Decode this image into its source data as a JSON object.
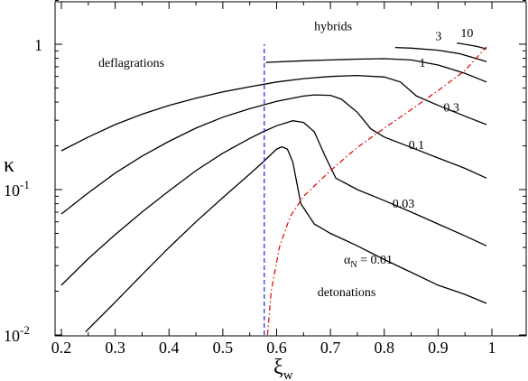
{
  "chart_data": {
    "type": "line",
    "xlabel": {
      "main": "ξ",
      "sub": "w"
    },
    "ylabel": "κ",
    "xlim": [
      0.2,
      1.0
    ],
    "ylim": [
      0.01,
      2.0
    ],
    "yscale": "log",
    "grid": false,
    "x_ticks": [
      "0.2",
      "0.3",
      "0.4",
      "0.5",
      "0.6",
      "0.7",
      "0.8",
      "0.9",
      "1"
    ],
    "y_ticks": [
      {
        "value": 1,
        "base": "1",
        "exp": ""
      },
      {
        "value": 0.1,
        "base": "10",
        "exp": "-1"
      },
      {
        "value": 0.01,
        "base": "10",
        "exp": "-2"
      }
    ],
    "region_labels": [
      {
        "name": "deflagrations",
        "text": "deflagrations",
        "x": 0.33,
        "y": 0.7
      },
      {
        "name": "hybrids",
        "text": "hybrids",
        "x": 0.705,
        "y": 1.25
      },
      {
        "name": "detonations",
        "text": "detonations",
        "x": 0.73,
        "y": 0.0185
      }
    ],
    "series": [
      {
        "name": "0.01",
        "label_text": "",
        "label_at": [
          0.0,
          0.0
        ],
        "points": [
          [
            0.245,
            0.0105
          ],
          [
            0.3,
            0.0168
          ],
          [
            0.35,
            0.026
          ],
          [
            0.4,
            0.04
          ],
          [
            0.45,
            0.06
          ],
          [
            0.5,
            0.088
          ],
          [
            0.55,
            0.128
          ],
          [
            0.575,
            0.155
          ],
          [
            0.6,
            0.19
          ],
          [
            0.61,
            0.197
          ],
          [
            0.62,
            0.19
          ],
          [
            0.63,
            0.155
          ],
          [
            0.645,
            0.08
          ],
          [
            0.67,
            0.058
          ],
          [
            0.7,
            0.05
          ],
          [
            0.75,
            0.041
          ],
          [
            0.8,
            0.033
          ],
          [
            0.85,
            0.027
          ],
          [
            0.9,
            0.022
          ],
          [
            0.95,
            0.019
          ],
          [
            0.99,
            0.0165
          ]
        ]
      },
      {
        "name": "0.03",
        "label_text": "0.03",
        "label_at": [
          0.815,
          0.075
        ],
        "points": [
          [
            0.2,
            0.022
          ],
          [
            0.25,
            0.0335
          ],
          [
            0.3,
            0.049
          ],
          [
            0.35,
            0.07
          ],
          [
            0.4,
            0.098
          ],
          [
            0.45,
            0.135
          ],
          [
            0.5,
            0.178
          ],
          [
            0.55,
            0.225
          ],
          [
            0.575,
            0.25
          ],
          [
            0.6,
            0.275
          ],
          [
            0.63,
            0.298
          ],
          [
            0.65,
            0.29
          ],
          [
            0.67,
            0.25
          ],
          [
            0.69,
            0.17
          ],
          [
            0.71,
            0.12
          ],
          [
            0.75,
            0.1
          ],
          [
            0.8,
            0.084
          ],
          [
            0.85,
            0.07
          ],
          [
            0.9,
            0.058
          ],
          [
            0.95,
            0.048
          ],
          [
            0.99,
            0.041
          ]
        ]
      },
      {
        "name": "0.1",
        "label_text": "0.1",
        "label_at": [
          0.845,
          0.19
        ],
        "points": [
          [
            0.2,
            0.068
          ],
          [
            0.25,
            0.095
          ],
          [
            0.3,
            0.13
          ],
          [
            0.35,
            0.17
          ],
          [
            0.4,
            0.215
          ],
          [
            0.45,
            0.265
          ],
          [
            0.5,
            0.315
          ],
          [
            0.55,
            0.36
          ],
          [
            0.6,
            0.405
          ],
          [
            0.65,
            0.44
          ],
          [
            0.67,
            0.448
          ],
          [
            0.7,
            0.445
          ],
          [
            0.72,
            0.42
          ],
          [
            0.75,
            0.34
          ],
          [
            0.775,
            0.262
          ],
          [
            0.8,
            0.23
          ],
          [
            0.85,
            0.195
          ],
          [
            0.9,
            0.165
          ],
          [
            0.95,
            0.14
          ],
          [
            0.99,
            0.12
          ]
        ]
      },
      {
        "name": "0.3",
        "label_text": "0.3",
        "label_at": [
          0.91,
          0.345
        ],
        "points": [
          [
            0.2,
            0.185
          ],
          [
            0.25,
            0.23
          ],
          [
            0.3,
            0.28
          ],
          [
            0.35,
            0.33
          ],
          [
            0.4,
            0.38
          ],
          [
            0.45,
            0.425
          ],
          [
            0.5,
            0.47
          ],
          [
            0.55,
            0.51
          ],
          [
            0.6,
            0.55
          ],
          [
            0.65,
            0.58
          ],
          [
            0.7,
            0.6
          ],
          [
            0.75,
            0.61
          ],
          [
            0.8,
            0.595
          ],
          [
            0.83,
            0.55
          ],
          [
            0.86,
            0.44
          ],
          [
            0.9,
            0.38
          ],
          [
            0.95,
            0.32
          ],
          [
            0.99,
            0.28
          ]
        ]
      },
      {
        "name": "1",
        "label_text": "1",
        "label_at": [
          0.865,
          0.7
        ],
        "points": [
          [
            0.58,
            0.75
          ],
          [
            0.65,
            0.77
          ],
          [
            0.7,
            0.78
          ],
          [
            0.75,
            0.79
          ],
          [
            0.8,
            0.795
          ],
          [
            0.85,
            0.78
          ],
          [
            0.9,
            0.72
          ],
          [
            0.95,
            0.63
          ],
          [
            0.99,
            0.55
          ]
        ]
      },
      {
        "name": "3",
        "label_text": "3",
        "label_at": [
          0.895,
          1.07
        ],
        "points": [
          [
            0.82,
            0.95
          ],
          [
            0.85,
            0.94
          ],
          [
            0.9,
            0.91
          ],
          [
            0.94,
            0.86
          ],
          [
            0.97,
            0.8
          ],
          [
            0.99,
            0.76
          ]
        ]
      },
      {
        "name": "10",
        "label_text": "10",
        "label_at": [
          0.942,
          1.12
        ],
        "points": [
          [
            0.935,
            1.02
          ],
          [
            0.97,
            0.97
          ],
          [
            0.99,
            0.93
          ]
        ]
      }
    ],
    "alpha_label": {
      "main": "α",
      "sub": "N",
      "rest": " = 0.01",
      "x": 0.725,
      "y": 0.031
    },
    "jouguet_curve": {
      "name": "jouguet-curve",
      "color": "#dd0000",
      "points": [
        [
          0.583,
          0.01
        ],
        [
          0.59,
          0.02
        ],
        [
          0.605,
          0.04
        ],
        [
          0.625,
          0.065
        ],
        [
          0.65,
          0.09
        ],
        [
          0.7,
          0.135
        ],
        [
          0.75,
          0.195
        ],
        [
          0.8,
          0.265
        ],
        [
          0.85,
          0.355
        ],
        [
          0.9,
          0.48
        ],
        [
          0.95,
          0.66
        ],
        [
          0.99,
          0.96
        ]
      ]
    },
    "sound_speed_line": {
      "name": "sound-speed-line",
      "color": "#2222dd",
      "x": 0.577,
      "y_range": [
        0.01,
        1.0
      ]
    }
  }
}
